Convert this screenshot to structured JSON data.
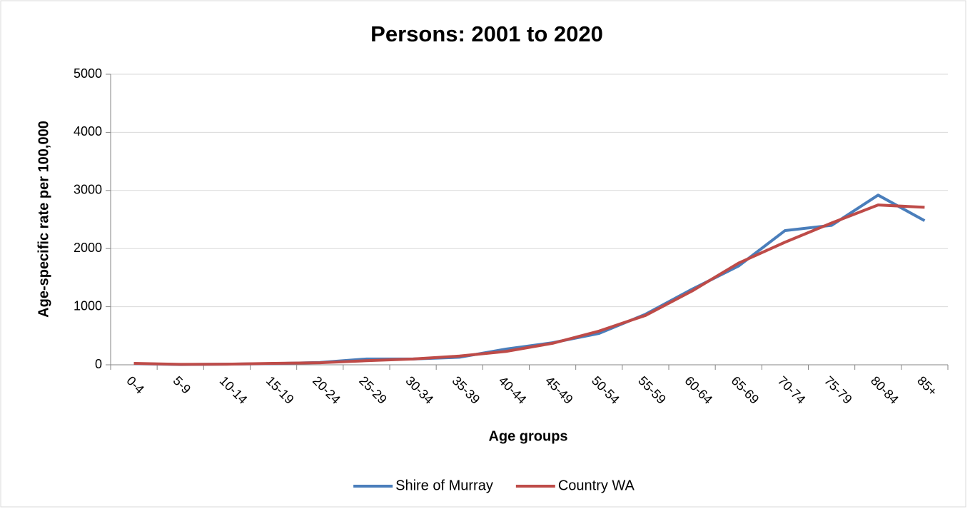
{
  "chart_data": {
    "type": "line",
    "title": "Persons: 2001 to 2020",
    "x_label": "Age groups",
    "y_label": "Age-specific rate per 100,000",
    "categories": [
      "0-4",
      "5-9",
      "10-14",
      "15-19",
      "20-24",
      "25-29",
      "30-34",
      "35-39",
      "40-44",
      "45-49",
      "50-54",
      "55-59",
      "60-64",
      "65-69",
      "70-74",
      "75-79",
      "80-84",
      "85+"
    ],
    "series": [
      {
        "name": "Shire of Murray",
        "color": "#4a7ebb",
        "values": [
          20,
          5,
          10,
          20,
          40,
          100,
          100,
          130,
          270,
          380,
          540,
          870,
          1300,
          1700,
          2310,
          2400,
          2920,
          2480
        ]
      },
      {
        "name": "Country WA",
        "color": "#be4b48",
        "values": [
          25,
          8,
          10,
          25,
          35,
          70,
          100,
          150,
          230,
          370,
          580,
          850,
          1270,
          1750,
          2110,
          2440,
          2750,
          2710
        ]
      }
    ],
    "ylim": [
      0,
      5000
    ],
    "yticks": [
      0,
      1000,
      2000,
      3000,
      4000,
      5000
    ],
    "grid": true,
    "legend": "bottom"
  }
}
